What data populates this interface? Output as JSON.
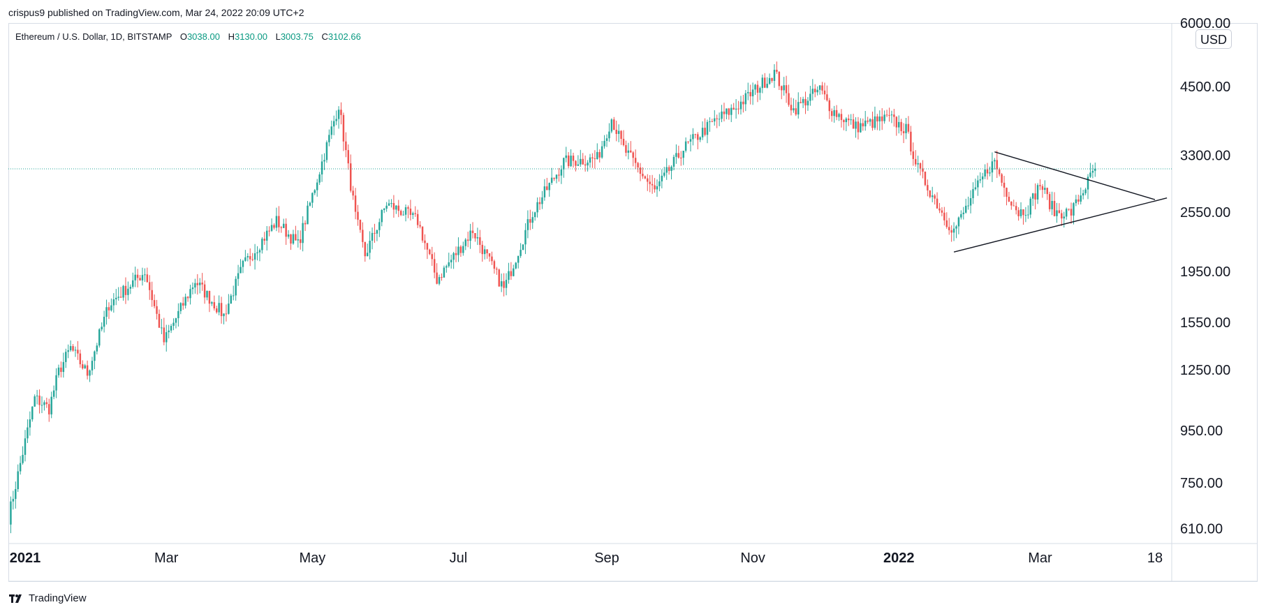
{
  "publisher": "crispus9 published on TradingView.com, Mar 24, 2022 20:09 UTC+2",
  "legend": {
    "symbol": "Ethereum / U.S. Dollar, 1D, BITSTAMP",
    "open_label": "O",
    "open": "3038.00",
    "high_label": "H",
    "high": "3130.00",
    "low_label": "L",
    "low": "3003.75",
    "close_label": "C",
    "close": "3102.66"
  },
  "currency": "USD",
  "footer": {
    "brand": "TradingView",
    "icon": "tradingview-logo-icon"
  },
  "colors": {
    "up": "#26a69a",
    "down": "#ef5350",
    "price_line": "#26a69a",
    "grid": "#e0e3eb",
    "text": "#131722"
  },
  "chart_data": {
    "type": "candlestick",
    "title": "Ethereum / U.S. Dollar, 1D, BITSTAMP",
    "symbol": "ETH/USD",
    "exchange": "BITSTAMP",
    "interval": "1D",
    "scale": "log",
    "y_ticks": [
      610,
      750,
      950,
      1250,
      1550,
      1950,
      2550,
      3300,
      4500,
      6000
    ],
    "y_tick_labels": [
      "610.00",
      "750.00",
      "950.00",
      "1250.00",
      "1550.00",
      "1950.00",
      "2550.00",
      "3300.00",
      "4500.00",
      "6000.00"
    ],
    "ylim": [
      570,
      6000
    ],
    "x_tick_labels": [
      {
        "date": "2021-01-01",
        "label": "2021",
        "bold": true
      },
      {
        "date": "2021-03-01",
        "label": "Mar",
        "bold": false
      },
      {
        "date": "2021-05-01",
        "label": "May",
        "bold": false
      },
      {
        "date": "2021-07-01",
        "label": "Jul",
        "bold": false
      },
      {
        "date": "2021-09-01",
        "label": "Sep",
        "bold": false
      },
      {
        "date": "2021-11-01",
        "label": "Nov",
        "bold": false
      },
      {
        "date": "2022-01-01",
        "label": "2022",
        "bold": true
      },
      {
        "date": "2022-03-01",
        "label": "Mar",
        "bold": false
      },
      {
        "date": "2022-04-18",
        "label": "18",
        "bold": false
      }
    ],
    "xlim": [
      "2020-12-25",
      "2022-04-25"
    ],
    "last_price": 3102.66,
    "close_path": [
      [
        "2020-12-25",
        640
      ],
      [
        "2021-01-05",
        1100
      ],
      [
        "2021-01-11",
        1050
      ],
      [
        "2021-01-15",
        1240
      ],
      [
        "2021-01-20",
        1380
      ],
      [
        "2021-01-27",
        1230
      ],
      [
        "2021-02-05",
        1680
      ],
      [
        "2021-02-20",
        1950
      ],
      [
        "2021-02-28",
        1420
      ],
      [
        "2021-03-13",
        1870
      ],
      [
        "2021-03-25",
        1600
      ],
      [
        "2021-04-02",
        2000
      ],
      [
        "2021-04-16",
        2450
      ],
      [
        "2021-04-25",
        2200
      ],
      [
        "2021-05-12",
        4150
      ],
      [
        "2021-05-19",
        2500
      ],
      [
        "2021-05-23",
        2100
      ],
      [
        "2021-06-01",
        2650
      ],
      [
        "2021-06-08",
        2550
      ],
      [
        "2021-06-14",
        2450
      ],
      [
        "2021-06-22",
        1880
      ],
      [
        "2021-07-01",
        2150
      ],
      [
        "2021-07-07",
        2350
      ],
      [
        "2021-07-20",
        1800
      ],
      [
        "2021-08-01",
        2550
      ],
      [
        "2021-08-14",
        3200
      ],
      [
        "2021-08-28",
        3250
      ],
      [
        "2021-09-03",
        3900
      ],
      [
        "2021-09-08",
        3400
      ],
      [
        "2021-09-21",
        2800
      ],
      [
        "2021-10-03",
        3400
      ],
      [
        "2021-10-16",
        3850
      ],
      [
        "2021-10-25",
        4100
      ],
      [
        "2021-11-10",
        4800
      ],
      [
        "2021-11-18",
        4050
      ],
      [
        "2021-11-29",
        4450
      ],
      [
        "2021-12-04",
        4050
      ],
      [
        "2021-12-14",
        3750
      ],
      [
        "2021-12-28",
        3900
      ],
      [
        "2022-01-04",
        3700
      ],
      [
        "2022-01-09",
        3100
      ],
      [
        "2022-01-21",
        2450
      ],
      [
        "2022-01-24",
        2350
      ],
      [
        "2022-02-07",
        3100
      ],
      [
        "2022-02-10",
        3200
      ],
      [
        "2022-02-14",
        2850
      ],
      [
        "2022-02-20",
        2550
      ],
      [
        "2022-02-24",
        2600
      ],
      [
        "2022-03-01",
        2900
      ],
      [
        "2022-03-07",
        2550
      ],
      [
        "2022-03-14",
        2550
      ],
      [
        "2022-03-24",
        3102.66
      ]
    ],
    "annotations": [
      {
        "type": "trendline",
        "name": "descending-resistance",
        "from": [
          "2022-02-10",
          3350
        ],
        "to": [
          "2022-04-18",
          2700
        ]
      },
      {
        "type": "trendline",
        "name": "ascending-support",
        "from": [
          "2022-01-24",
          2130
        ],
        "to": [
          "2022-04-23",
          2720
        ]
      }
    ]
  }
}
